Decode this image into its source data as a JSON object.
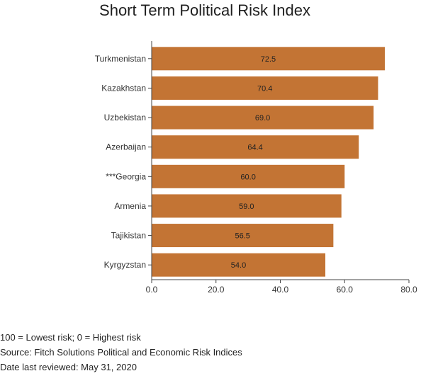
{
  "chart_data": {
    "type": "bar",
    "orientation": "horizontal",
    "title": "Short Term Political Risk Index",
    "categories": [
      "Turkmenistan",
      "Kazakhstan",
      "Uzbekistan",
      "Azerbaijan",
      "***Georgia",
      "Armenia",
      "Tajikistan",
      "Kyrgyzstan"
    ],
    "values": [
      72.5,
      70.4,
      69.0,
      64.4,
      60.0,
      59.0,
      56.5,
      54.0
    ],
    "value_labels": [
      "72.5",
      "70.4",
      "69.0",
      "64.4",
      "60.0",
      "59.0",
      "56.5",
      "54.0"
    ],
    "xlim": [
      0,
      80
    ],
    "x_ticks": [
      "0.0",
      "20.0",
      "40.0",
      "60.0",
      "80.0"
    ],
    "bar_color": "#c37434",
    "grid": false,
    "xlabel": "",
    "ylabel": ""
  },
  "notes": {
    "scale": "100 = Lowest risk; 0 = Highest risk",
    "source": "Source: Fitch Solutions Political and Economic Risk Indices",
    "date": "Date last reviewed: May 31, 2020"
  }
}
